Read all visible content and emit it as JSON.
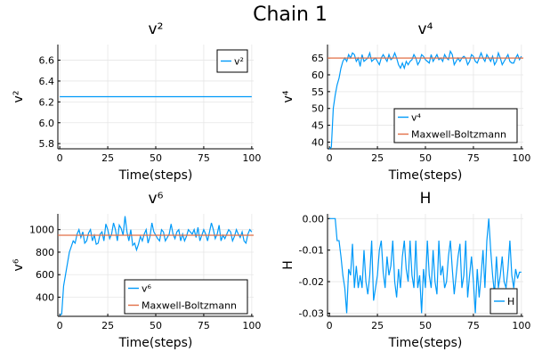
{
  "figure": {
    "title": "Chain 1",
    "colors": {
      "series": "#009af9",
      "reference": "#e26f46"
    }
  },
  "chart_data": [
    {
      "type": "line",
      "title": "v²",
      "xlabel": "Time(steps)",
      "ylabel": "v²",
      "xlim": [
        -1,
        101
      ],
      "ylim": [
        5.75,
        6.75
      ],
      "xticks": [
        0,
        25,
        50,
        75,
        100
      ],
      "yticks": [
        5.8,
        6.0,
        6.2,
        6.4,
        6.6
      ],
      "ytick_labels": [
        "5.8",
        "6.0",
        "6.2",
        "6.4",
        "6.6"
      ],
      "grid": true,
      "legend": "top-right",
      "series": [
        {
          "name": "v²",
          "role": "series",
          "x": [
            0,
            100
          ],
          "y": [
            6.25,
            6.25
          ]
        }
      ]
    },
    {
      "type": "line",
      "title": "v⁴",
      "xlabel": "Time(steps)",
      "ylabel": "v⁴",
      "xlim": [
        -1,
        101
      ],
      "ylim": [
        38,
        69
      ],
      "xticks": [
        0,
        25,
        50,
        75,
        100
      ],
      "yticks": [
        40,
        45,
        50,
        55,
        60,
        65
      ],
      "ytick_labels": [
        "40",
        "45",
        "50",
        "55",
        "60",
        "65"
      ],
      "grid": true,
      "legend": "bottom-right",
      "series": [
        {
          "name": "v⁴",
          "role": "series",
          "x": [
            0,
            1,
            2,
            3,
            4,
            5,
            6,
            7,
            8,
            9,
            10,
            11,
            12,
            13,
            14,
            15,
            16,
            17,
            18,
            19,
            20,
            21,
            22,
            23,
            24,
            25,
            26,
            27,
            28,
            29,
            30,
            31,
            32,
            33,
            34,
            35,
            36,
            37,
            38,
            39,
            40,
            41,
            42,
            43,
            44,
            45,
            46,
            47,
            48,
            49,
            50,
            51,
            52,
            53,
            54,
            55,
            56,
            57,
            58,
            59,
            60,
            61,
            62,
            63,
            64,
            65,
            66,
            67,
            68,
            69,
            70,
            71,
            72,
            73,
            74,
            75,
            76,
            77,
            78,
            79,
            80,
            81,
            82,
            83,
            84,
            85,
            86,
            87,
            88,
            89,
            90,
            91,
            92,
            93,
            94,
            95,
            96,
            97,
            98,
            99,
            100
          ],
          "y": [
            38,
            38.5,
            50,
            54,
            57,
            59,
            62,
            64,
            65,
            64,
            66,
            65,
            66.5,
            66,
            64,
            65,
            62.5,
            66,
            64,
            64.5,
            65,
            66.5,
            64,
            64.5,
            65,
            64,
            63,
            65,
            66,
            65,
            64,
            66,
            64.5,
            65,
            66.5,
            65,
            63,
            62,
            63.5,
            62,
            64,
            63,
            64,
            64.5,
            66,
            65,
            63,
            64,
            66,
            65.5,
            64.5,
            64,
            63.5,
            66,
            64,
            65,
            66,
            64.5,
            65,
            64,
            66,
            65,
            64.5,
            67,
            66,
            63,
            64,
            65,
            64,
            65,
            65.5,
            65,
            63,
            64,
            66,
            65.5,
            64,
            63.5,
            65,
            66.5,
            65,
            64,
            66,
            65,
            64,
            65.5,
            63,
            64,
            66.5,
            65,
            63,
            64,
            65,
            66,
            64,
            63.5,
            63.5,
            65,
            66,
            64.5,
            65.5
          ]
        },
        {
          "name": "Maxwell-Boltzmann",
          "role": "reference",
          "x": [
            -1,
            101
          ],
          "y": [
            65,
            65
          ]
        }
      ]
    },
    {
      "type": "line",
      "title": "v⁶",
      "xlabel": "Time(steps)",
      "ylabel": "v⁶",
      "xlim": [
        -1,
        101
      ],
      "ylim": [
        230,
        1140
      ],
      "xticks": [
        0,
        25,
        50,
        75,
        100
      ],
      "yticks": [
        400,
        600,
        800,
        1000
      ],
      "ytick_labels": [
        "400",
        "600",
        "800",
        "1000"
      ],
      "grid": true,
      "legend": "bottom-right",
      "series": [
        {
          "name": "v⁶",
          "role": "series",
          "x": [
            0,
            1,
            2,
            3,
            4,
            5,
            6,
            7,
            8,
            9,
            10,
            11,
            12,
            13,
            14,
            15,
            16,
            17,
            18,
            19,
            20,
            21,
            22,
            23,
            24,
            25,
            26,
            27,
            28,
            29,
            30,
            31,
            32,
            33,
            34,
            35,
            36,
            37,
            38,
            39,
            40,
            41,
            42,
            43,
            44,
            45,
            46,
            47,
            48,
            49,
            50,
            51,
            52,
            53,
            54,
            55,
            56,
            57,
            58,
            59,
            60,
            61,
            62,
            63,
            64,
            65,
            66,
            67,
            68,
            69,
            70,
            71,
            72,
            73,
            74,
            75,
            76,
            77,
            78,
            79,
            80,
            81,
            82,
            83,
            84,
            85,
            86,
            87,
            88,
            89,
            90,
            91,
            92,
            93,
            94,
            95,
            96,
            97,
            98,
            99,
            100
          ],
          "y": [
            240,
            250,
            500,
            600,
            700,
            800,
            850,
            900,
            880,
            960,
            1000,
            930,
            980,
            880,
            900,
            970,
            1000,
            900,
            950,
            870,
            880,
            960,
            980,
            900,
            1050,
            1000,
            920,
            960,
            1060,
            1000,
            900,
            1040,
            1010,
            950,
            1120,
            980,
            900,
            1000,
            860,
            880,
            820,
            870,
            940,
            900,
            960,
            1000,
            880,
            940,
            1060,
            980,
            950,
            920,
            900,
            1000,
            980,
            900,
            930,
            960,
            1050,
            960,
            920,
            980,
            1000,
            900,
            960,
            900,
            940,
            1000,
            980,
            960,
            1000,
            930,
            1020,
            900,
            950,
            1000,
            960,
            900,
            980,
            1060,
            1000,
            920,
            960,
            1040,
            900,
            950,
            920,
            960,
            1000,
            980,
            900,
            940,
            1000,
            960,
            930,
            980,
            900,
            880,
            960,
            1000,
            980
          ]
        },
        {
          "name": "Maxwell-Boltzmann",
          "role": "reference",
          "x": [
            -1,
            101
          ],
          "y": [
            950,
            950
          ]
        }
      ]
    },
    {
      "type": "line",
      "title": "H",
      "xlabel": "Time(steps)",
      "ylabel": "H",
      "xlim": [
        -1,
        101
      ],
      "ylim": [
        -0.031,
        0.0015
      ],
      "xticks": [
        0,
        25,
        50,
        75,
        100
      ],
      "yticks": [
        0.0,
        -0.01,
        -0.02,
        -0.03
      ],
      "ytick_labels": [
        "0.00",
        "-0.01",
        "-0.02",
        "-0.03"
      ],
      "grid": true,
      "legend": "bottom-right",
      "series": [
        {
          "name": "H",
          "role": "series",
          "x": [
            0,
            1,
            2,
            3,
            4,
            5,
            6,
            7,
            8,
            9,
            10,
            11,
            12,
            13,
            14,
            15,
            16,
            17,
            18,
            19,
            20,
            21,
            22,
            23,
            24,
            25,
            26,
            27,
            28,
            29,
            30,
            31,
            32,
            33,
            34,
            35,
            36,
            37,
            38,
            39,
            40,
            41,
            42,
            43,
            44,
            45,
            46,
            47,
            48,
            49,
            50,
            51,
            52,
            53,
            54,
            55,
            56,
            57,
            58,
            59,
            60,
            61,
            62,
            63,
            64,
            65,
            66,
            67,
            68,
            69,
            70,
            71,
            72,
            73,
            74,
            75,
            76,
            77,
            78,
            79,
            80,
            81,
            82,
            83,
            84,
            85,
            86,
            87,
            88,
            89,
            90,
            91,
            92,
            93,
            94,
            95,
            96,
            97,
            98,
            99,
            100
          ],
          "y": [
            0,
            0,
            0,
            0,
            -0.007,
            -0.007,
            -0.012,
            -0.018,
            -0.022,
            -0.03,
            -0.016,
            -0.018,
            -0.008,
            -0.022,
            -0.015,
            -0.022,
            -0.018,
            -0.022,
            -0.01,
            -0.02,
            -0.024,
            -0.018,
            -0.007,
            -0.026,
            -0.022,
            -0.018,
            -0.01,
            -0.007,
            -0.017,
            -0.022,
            -0.012,
            -0.018,
            -0.015,
            -0.007,
            -0.02,
            -0.025,
            -0.016,
            -0.022,
            -0.012,
            -0.007,
            -0.016,
            -0.02,
            -0.007,
            -0.018,
            -0.022,
            -0.007,
            -0.022,
            -0.018,
            -0.03,
            -0.016,
            -0.022,
            -0.007,
            -0.018,
            -0.022,
            -0.01,
            -0.02,
            -0.024,
            -0.007,
            -0.018,
            -0.015,
            -0.022,
            -0.02,
            -0.012,
            -0.007,
            -0.016,
            -0.024,
            -0.018,
            -0.012,
            -0.008,
            -0.022,
            -0.018,
            -0.007,
            -0.025,
            -0.018,
            -0.012,
            -0.02,
            -0.03,
            -0.016,
            -0.025,
            -0.018,
            -0.01,
            -0.022,
            -0.007,
            0,
            -0.01,
            -0.018,
            -0.024,
            -0.012,
            -0.022,
            -0.018,
            -0.012,
            -0.02,
            -0.022,
            -0.016,
            -0.007,
            -0.018,
            -0.022,
            -0.016,
            -0.019,
            -0.017,
            -0.017
          ]
        }
      ]
    }
  ]
}
